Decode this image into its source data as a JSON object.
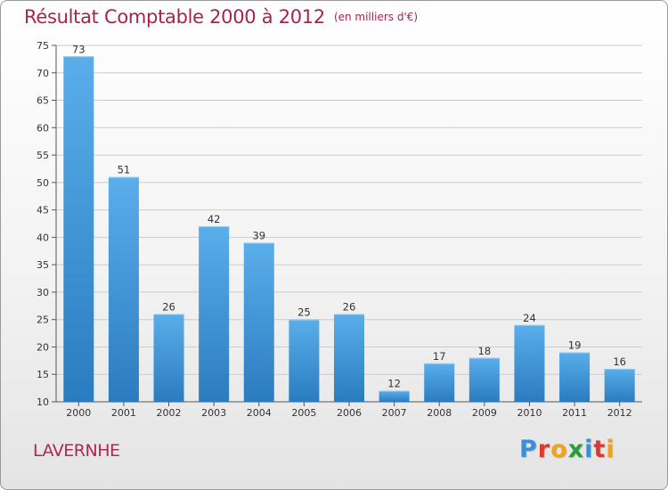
{
  "header": {
    "title": "Résultat Comptable 2000 à 2012",
    "unit": "(en milliers d'€)"
  },
  "footer": {
    "place": "LAVERNHE",
    "logo_letters": [
      {
        "char": "P",
        "color": "#3a8fd6"
      },
      {
        "char": "r",
        "color": "#e0382c"
      },
      {
        "char": "o",
        "color": "#f0a21a"
      },
      {
        "char": "x",
        "color": "#2a9d3a"
      },
      {
        "char": "i",
        "color": "#3a8fd6"
      },
      {
        "char": "t",
        "color": "#e0382c"
      },
      {
        "char": "i",
        "color": "#f0a21a"
      }
    ]
  },
  "chart_data": {
    "type": "bar",
    "title": "Résultat Comptable 2000 à 2012",
    "subtitle": "(en milliers d'€)",
    "xlabel": "",
    "ylabel": "",
    "categories": [
      "2000",
      "2001",
      "2002",
      "2003",
      "2004",
      "2005",
      "2006",
      "2007",
      "2008",
      "2009",
      "2010",
      "2011",
      "2012"
    ],
    "values": [
      73,
      51,
      26,
      42,
      39,
      25,
      26,
      12,
      17,
      18,
      24,
      19,
      16
    ],
    "ylim": [
      10,
      75
    ],
    "yticks": [
      10,
      15,
      20,
      25,
      30,
      35,
      40,
      45,
      50,
      55,
      60,
      65,
      70,
      75
    ],
    "grid": true,
    "bar_color_top": "#5aaeea",
    "bar_color_bottom": "#2a7cc0"
  }
}
